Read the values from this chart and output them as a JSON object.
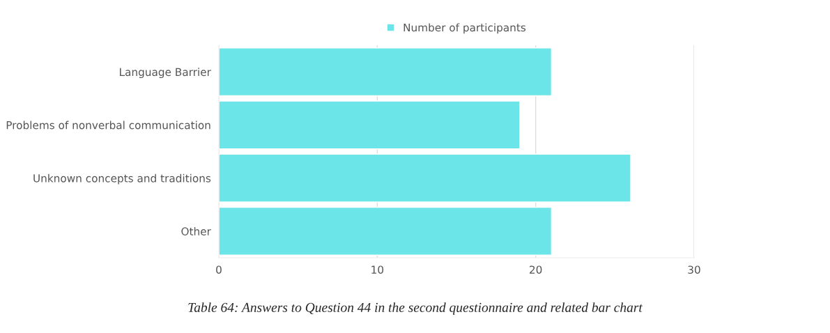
{
  "chart_data": {
    "type": "bar",
    "orientation": "horizontal",
    "categories": [
      "Language Barrier",
      "Problems of nonverbal communication",
      "Unknown concepts and traditions",
      "Other"
    ],
    "series": [
      {
        "name": "Number of participants",
        "color": "#6ce5e8",
        "values": [
          21,
          19,
          26,
          21
        ]
      }
    ],
    "xlim": [
      0,
      30
    ],
    "xticks": [
      0,
      10,
      20,
      30
    ],
    "grid": "x",
    "legend": "top",
    "annotations": [
      "Table 64: Answers to Question 44 in the second questionnaire and related bar chart"
    ]
  }
}
